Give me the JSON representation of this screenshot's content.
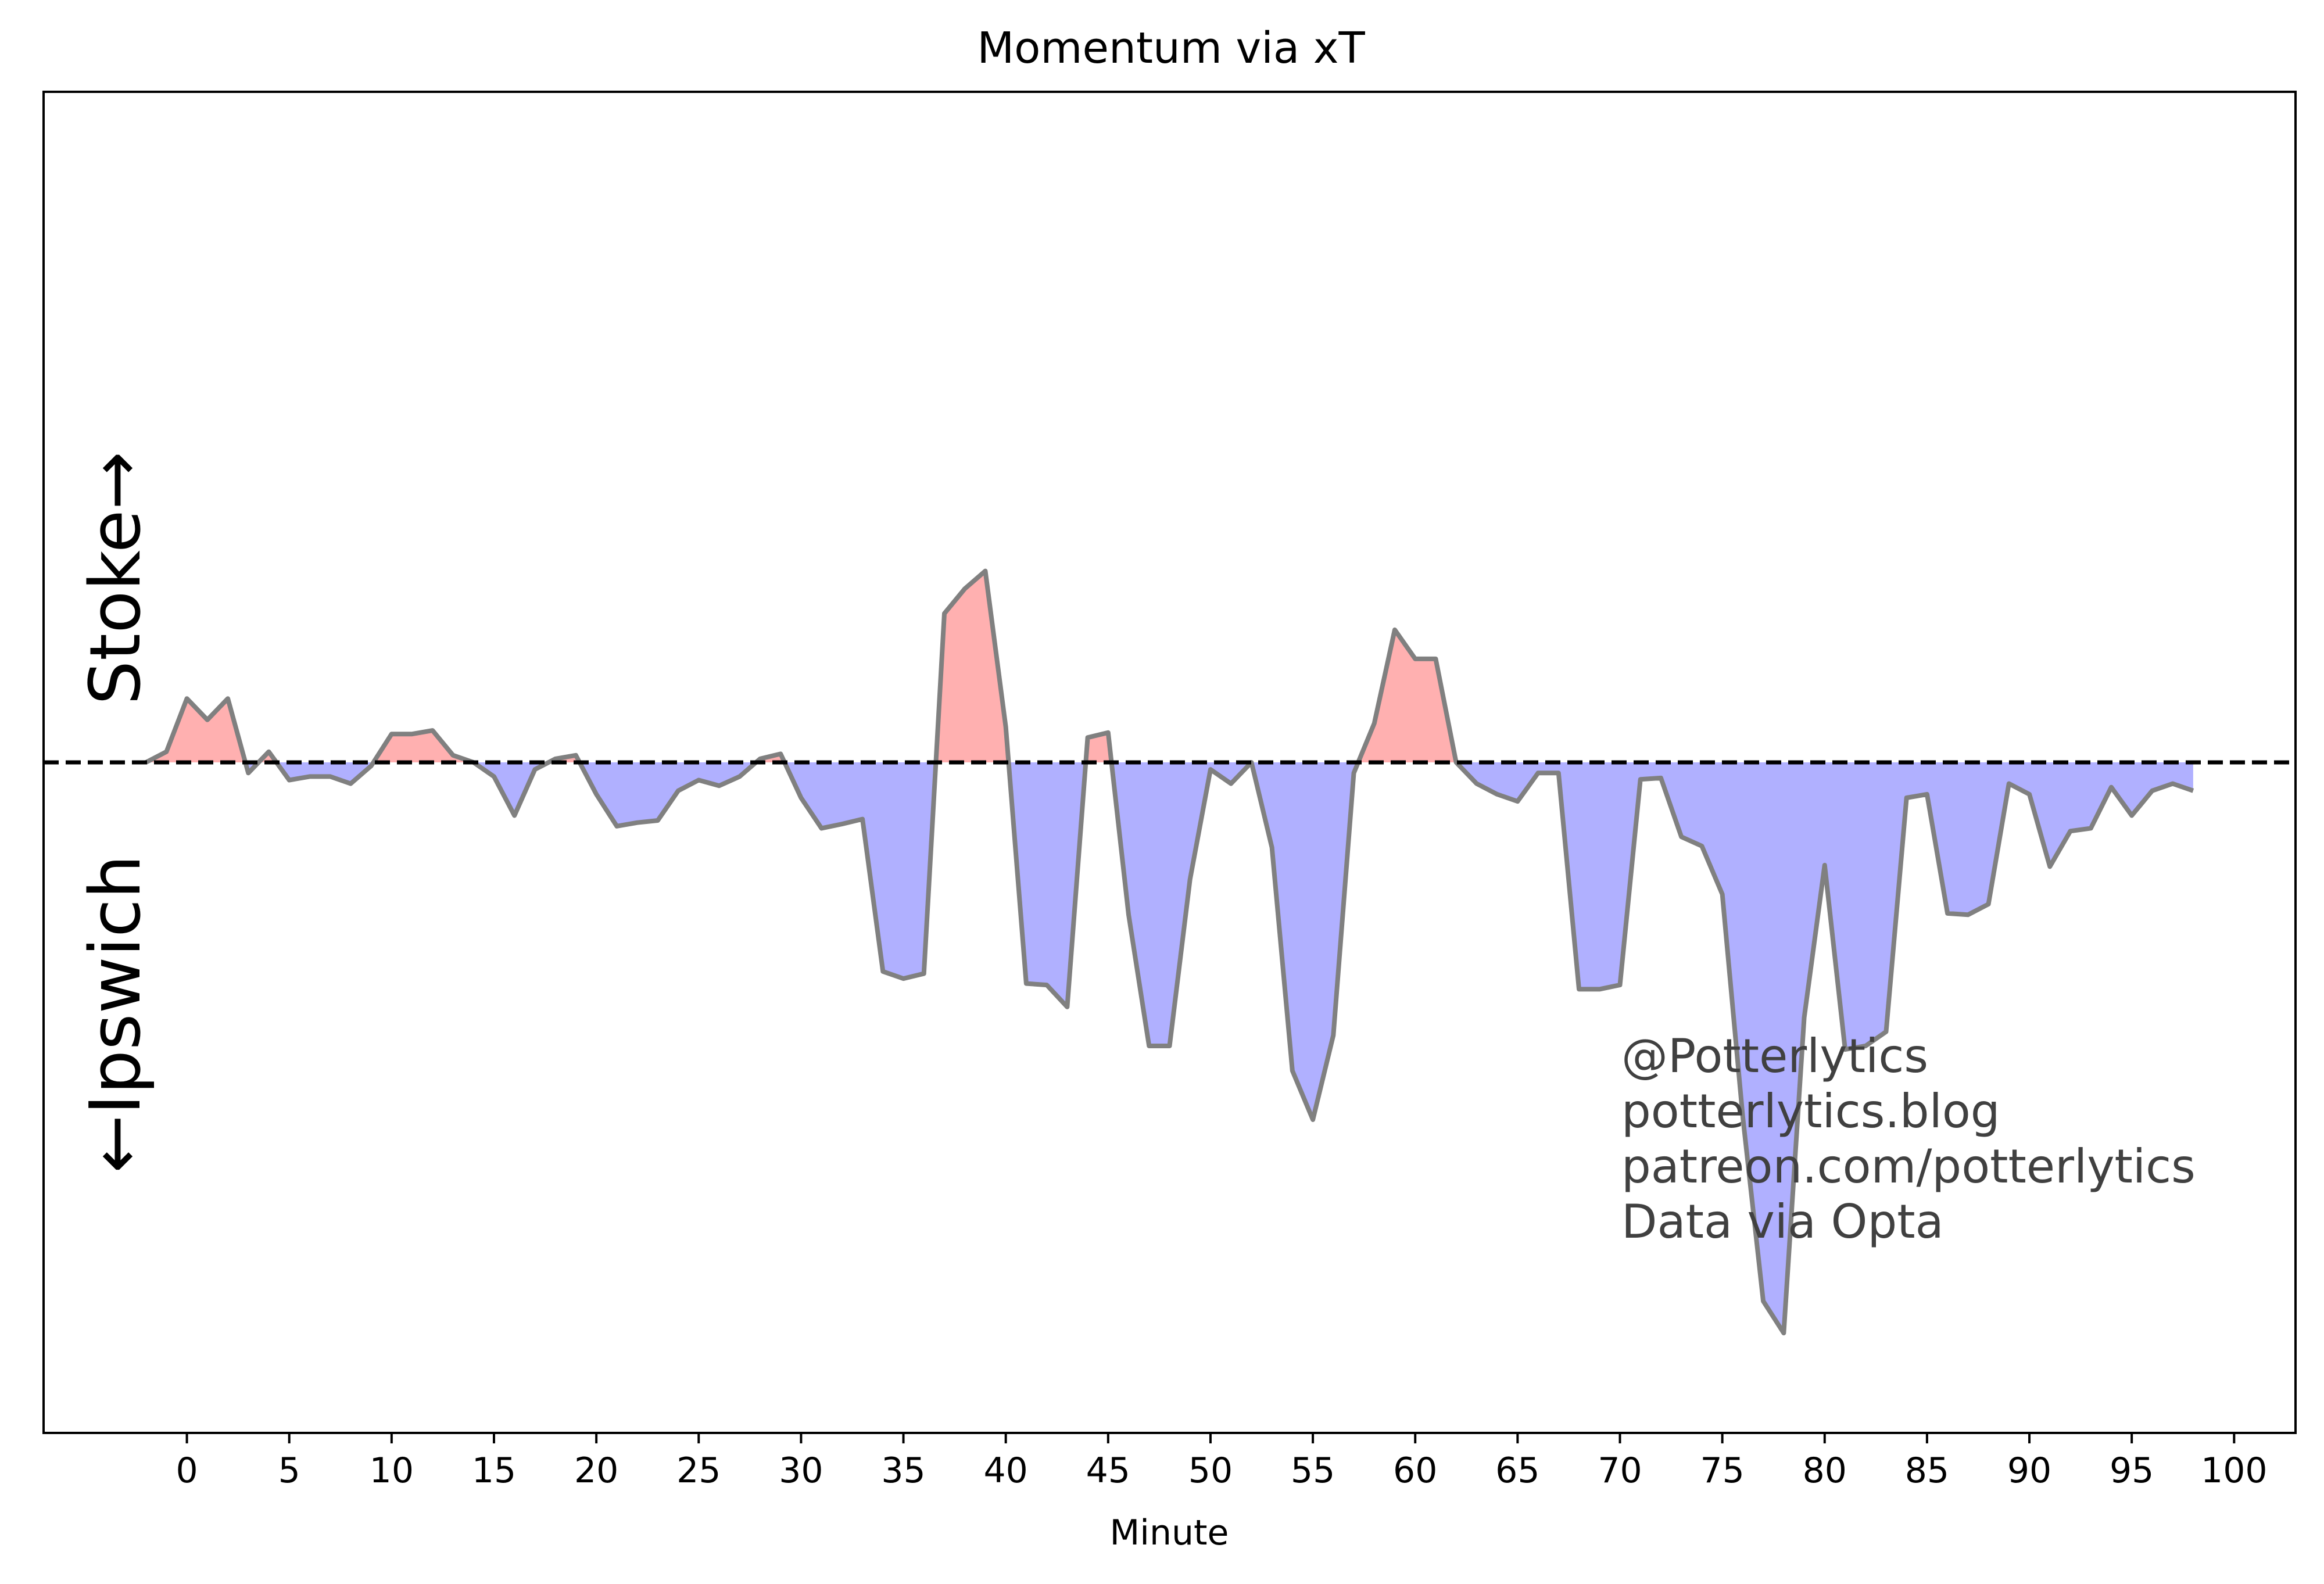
{
  "chart_data": {
    "type": "area",
    "title": "Momentum via xT",
    "xlabel": "Minute",
    "ylabel": "",
    "xlim": [
      -7,
      103
    ],
    "ylim": [
      -1.0,
      1.0
    ],
    "xticks": [
      0,
      5,
      10,
      15,
      20,
      25,
      30,
      35,
      40,
      45,
      50,
      55,
      60,
      65,
      70,
      75,
      80,
      85,
      90,
      95,
      100
    ],
    "baseline": 0,
    "positive_team": "Stoke",
    "negative_team": "Ipswich",
    "positive_label": "Stoke→",
    "negative_label": "←Ipswich",
    "positive_color": "#ffb0b0",
    "negative_color": "#b0b0ff",
    "line_color": "#808080",
    "grid": false,
    "x": [
      -2,
      -1,
      0,
      1,
      2,
      3,
      4,
      5,
      6,
      7,
      8,
      9,
      10,
      11,
      12,
      13,
      14,
      15,
      16,
      17,
      18,
      19,
      20,
      21,
      22,
      23,
      24,
      25,
      26,
      27,
      28,
      29,
      30,
      31,
      32,
      33,
      34,
      35,
      36,
      37,
      38,
      39,
      40,
      41,
      42,
      43,
      44,
      45,
      46,
      47,
      48,
      49,
      50,
      51,
      52,
      53,
      54,
      55,
      56,
      57,
      58,
      59,
      60,
      61,
      62,
      63,
      64,
      65,
      66,
      67,
      68,
      69,
      70,
      71,
      72,
      73,
      74,
      75,
      76,
      77,
      78,
      79,
      80,
      81,
      82,
      83,
      84,
      85,
      86,
      87,
      88,
      89,
      90,
      91,
      92,
      93,
      94,
      95,
      96,
      97,
      98
    ],
    "values": [
      0.0,
      0.015,
      0.09,
      0.06,
      0.09,
      -0.015,
      0.015,
      -0.025,
      -0.02,
      -0.02,
      -0.03,
      -0.005,
      0.04,
      0.04,
      0.045,
      0.01,
      0.0,
      -0.02,
      -0.075,
      -0.01,
      0.005,
      0.01,
      -0.045,
      -0.09,
      -0.085,
      -0.082,
      -0.04,
      -0.025,
      -0.033,
      -0.02,
      0.005,
      0.012,
      -0.05,
      -0.093,
      -0.087,
      -0.08,
      -0.295,
      -0.305,
      -0.298,
      0.21,
      0.245,
      0.27,
      0.05,
      -0.312,
      -0.314,
      -0.345,
      0.035,
      0.042,
      -0.215,
      -0.4,
      -0.4,
      -0.165,
      -0.01,
      -0.03,
      0.0,
      -0.12,
      -0.435,
      -0.504,
      -0.385,
      -0.015,
      0.055,
      0.187,
      0.146,
      0.146,
      0.0,
      -0.03,
      -0.045,
      -0.055,
      -0.015,
      -0.015,
      -0.32,
      -0.32,
      -0.314,
      -0.024,
      -0.022,
      -0.105,
      -0.118,
      -0.186,
      -0.5,
      -0.76,
      -0.805,
      -0.36,
      -0.145,
      -0.405,
      -0.4,
      -0.38,
      -0.05,
      -0.045,
      -0.213,
      -0.215,
      -0.2,
      -0.03,
      -0.045,
      -0.147,
      -0.097,
      -0.093,
      -0.035,
      -0.075,
      -0.04,
      -0.03,
      -0.04
    ]
  },
  "credits": [
    "@Potterlytics",
    "potterlytics.blog",
    "patreon.com/potterlytics",
    "Data via Opta"
  ]
}
